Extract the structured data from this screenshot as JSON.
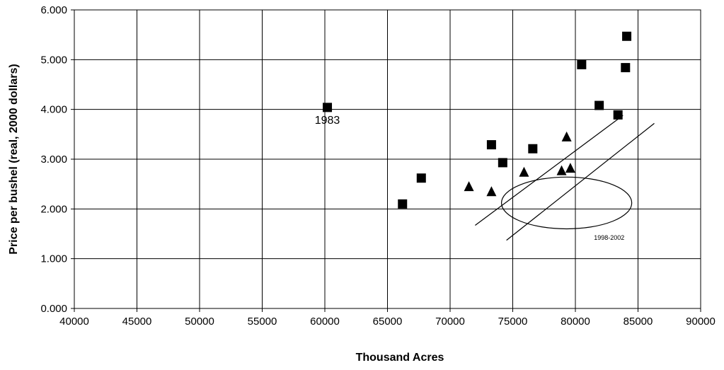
{
  "chart_data": {
    "type": "scatter",
    "xlabel": "Thousand Acres",
    "ylabel": "Price per bushel (real, 2000 dollars)",
    "xlim": [
      40000,
      90000
    ],
    "ylim": [
      0,
      6
    ],
    "x_ticks": [
      "40000",
      "45000",
      "50000",
      "55000",
      "60000",
      "65000",
      "70000",
      "75000",
      "80000",
      "85000",
      "90000"
    ],
    "y_ticks": [
      "0.000",
      "1.000",
      "2.000",
      "3.000",
      "4.000",
      "5.000",
      "6.000"
    ],
    "grid": true,
    "series": [
      {
        "marker": "square",
        "color": "#000000",
        "points": [
          {
            "x": 60200,
            "y": 4.04
          },
          {
            "x": 66200,
            "y": 2.1
          },
          {
            "x": 67700,
            "y": 2.62
          },
          {
            "x": 73300,
            "y": 3.29
          },
          {
            "x": 74200,
            "y": 2.93
          },
          {
            "x": 76600,
            "y": 3.21
          },
          {
            "x": 80500,
            "y": 4.9
          },
          {
            "x": 81900,
            "y": 4.08
          },
          {
            "x": 83400,
            "y": 3.89
          },
          {
            "x": 84000,
            "y": 4.84
          },
          {
            "x": 84100,
            "y": 5.47
          }
        ]
      },
      {
        "marker": "triangle",
        "color": "#000000",
        "points": [
          {
            "x": 71500,
            "y": 2.45
          },
          {
            "x": 73300,
            "y": 2.35
          },
          {
            "x": 75900,
            "y": 2.74
          },
          {
            "x": 78900,
            "y": 2.77
          },
          {
            "x": 79300,
            "y": 3.45
          },
          {
            "x": 79600,
            "y": 2.82
          }
        ]
      }
    ],
    "lines": [
      {
        "x1": 72000,
        "y1": 1.67,
        "x2": 83800,
        "y2": 3.88
      },
      {
        "x1": 74500,
        "y1": 1.37,
        "x2": 86300,
        "y2": 3.72
      }
    ],
    "ellipse": {
      "cx": 79300,
      "cy": 2.12,
      "rx": 5200,
      "ry": 0.52
    },
    "annotations": [
      {
        "text": "1983",
        "x": 60200,
        "y": 3.78,
        "size": "big"
      },
      {
        "text": "1998-2002",
        "x": 82700,
        "y": 1.45,
        "size": "small"
      }
    ]
  }
}
